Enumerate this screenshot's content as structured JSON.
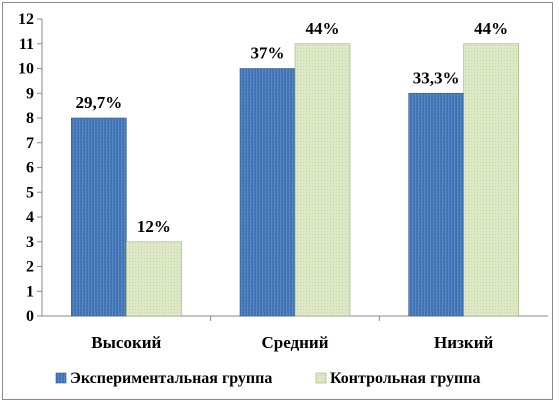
{
  "chart_data": {
    "type": "bar",
    "categories": [
      "Высокий",
      "Средний",
      "Низкий"
    ],
    "series": [
      {
        "name": "Экспериментальная группа",
        "values": [
          8,
          10,
          9
        ],
        "labels": [
          "29,7%",
          "37%",
          "33,3%"
        ],
        "color": "#4a7ebb"
      },
      {
        "name": "Контрольная группа",
        "values": [
          3,
          11,
          11
        ],
        "labels": [
          "12%",
          "44%",
          "44%"
        ],
        "color": "#d7e4bd"
      }
    ],
    "ylim": [
      0,
      12
    ],
    "yticks": [
      "0",
      "1",
      "2",
      "3",
      "4",
      "5",
      "6",
      "7",
      "8",
      "9",
      "10",
      "11",
      "12"
    ],
    "grid": false,
    "legend": "bottom"
  }
}
